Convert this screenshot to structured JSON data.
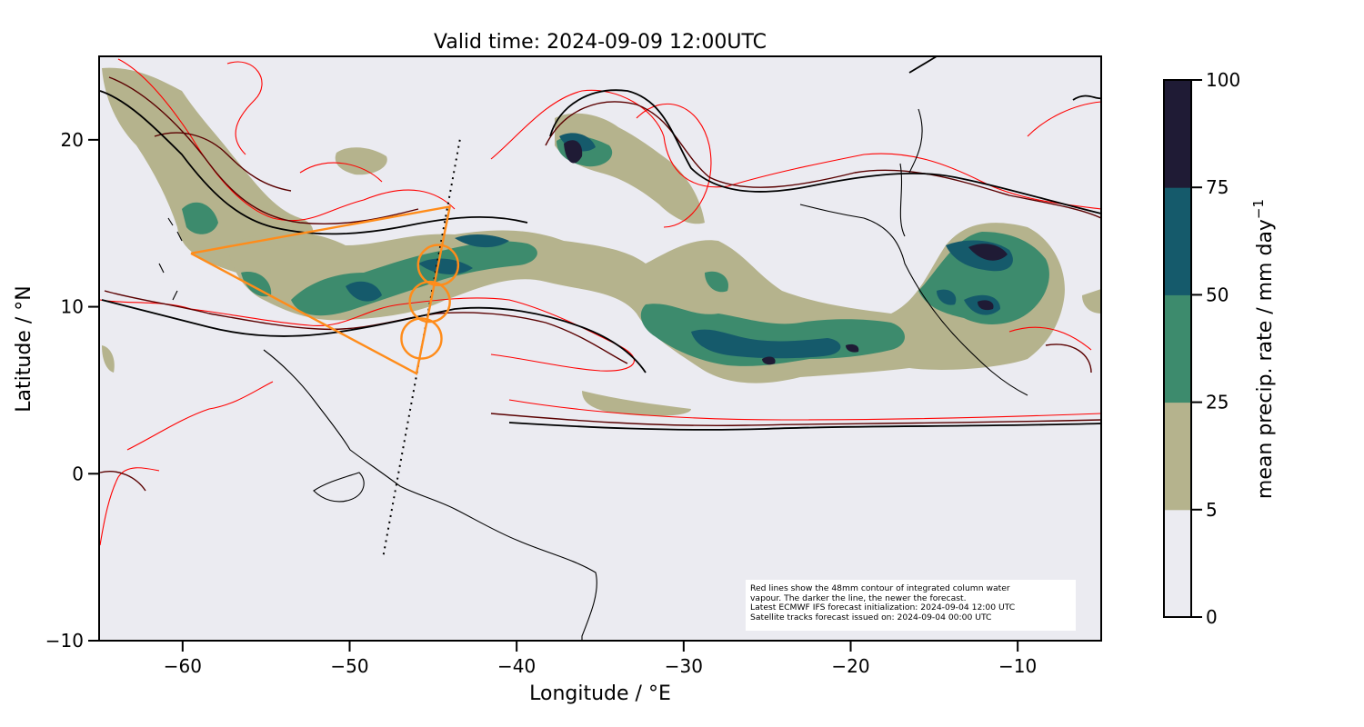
{
  "title": "Valid time: 2024-09-09 12:00UTC",
  "xlabel": "Longitude / °E",
  "ylabel": "Latitude / °N",
  "x_ticks": [
    "−60",
    "−50",
    "−40",
    "−30",
    "−20",
    "−10"
  ],
  "y_ticks": [
    "20",
    "10",
    "0",
    "−10"
  ],
  "xlim": [
    -65,
    -5
  ],
  "ylim": [
    -10,
    25
  ],
  "colorbar": {
    "label": "mean precip. rate / mm day",
    "label_superscript": "−1",
    "ticks": [
      "0",
      "5",
      "25",
      "50",
      "75",
      "100"
    ],
    "levels": [
      0,
      5,
      25,
      50,
      75,
      100
    ],
    "colors": [
      "#ebebf1",
      "#b5b38d",
      "#3d8b6d",
      "#155a6b",
      "#1f1b35"
    ]
  },
  "annotation": {
    "line1": "Red lines show the 48mm contour of integrated column water",
    "line2": "vapour. The darker the line, the newer the forecast.",
    "line3": "Latest ECMWF IFS forecast initialization: 2024-09-04 12:00 UTC",
    "line4": "Satellite tracks forecast issued on: 2024-09-04 00:00 UTC"
  },
  "colors": {
    "background": "#ebebf1",
    "flight_track": "#ff8c1a",
    "contour_newest": "#000000",
    "contour_mid": "#5a0000",
    "contour_oldest": "#ff0000",
    "coastline": "#000000"
  },
  "flight_track": {
    "polygon": [
      [
        -59.5,
        13.2
      ],
      [
        -44.0,
        16.0
      ],
      [
        -46.0,
        6.0
      ],
      [
        -59.5,
        13.2
      ]
    ],
    "circles": [
      {
        "lon": -44.7,
        "lat": 12.5,
        "radius_deg": 1.2
      },
      {
        "lon": -45.2,
        "lat": 10.3,
        "radius_deg": 1.2
      },
      {
        "lon": -45.7,
        "lat": 8.1,
        "radius_deg": 1.2
      }
    ]
  },
  "satellite_track": [
    [
      -43.4,
      20.0
    ],
    [
      -48.0,
      -5.0
    ]
  ]
}
